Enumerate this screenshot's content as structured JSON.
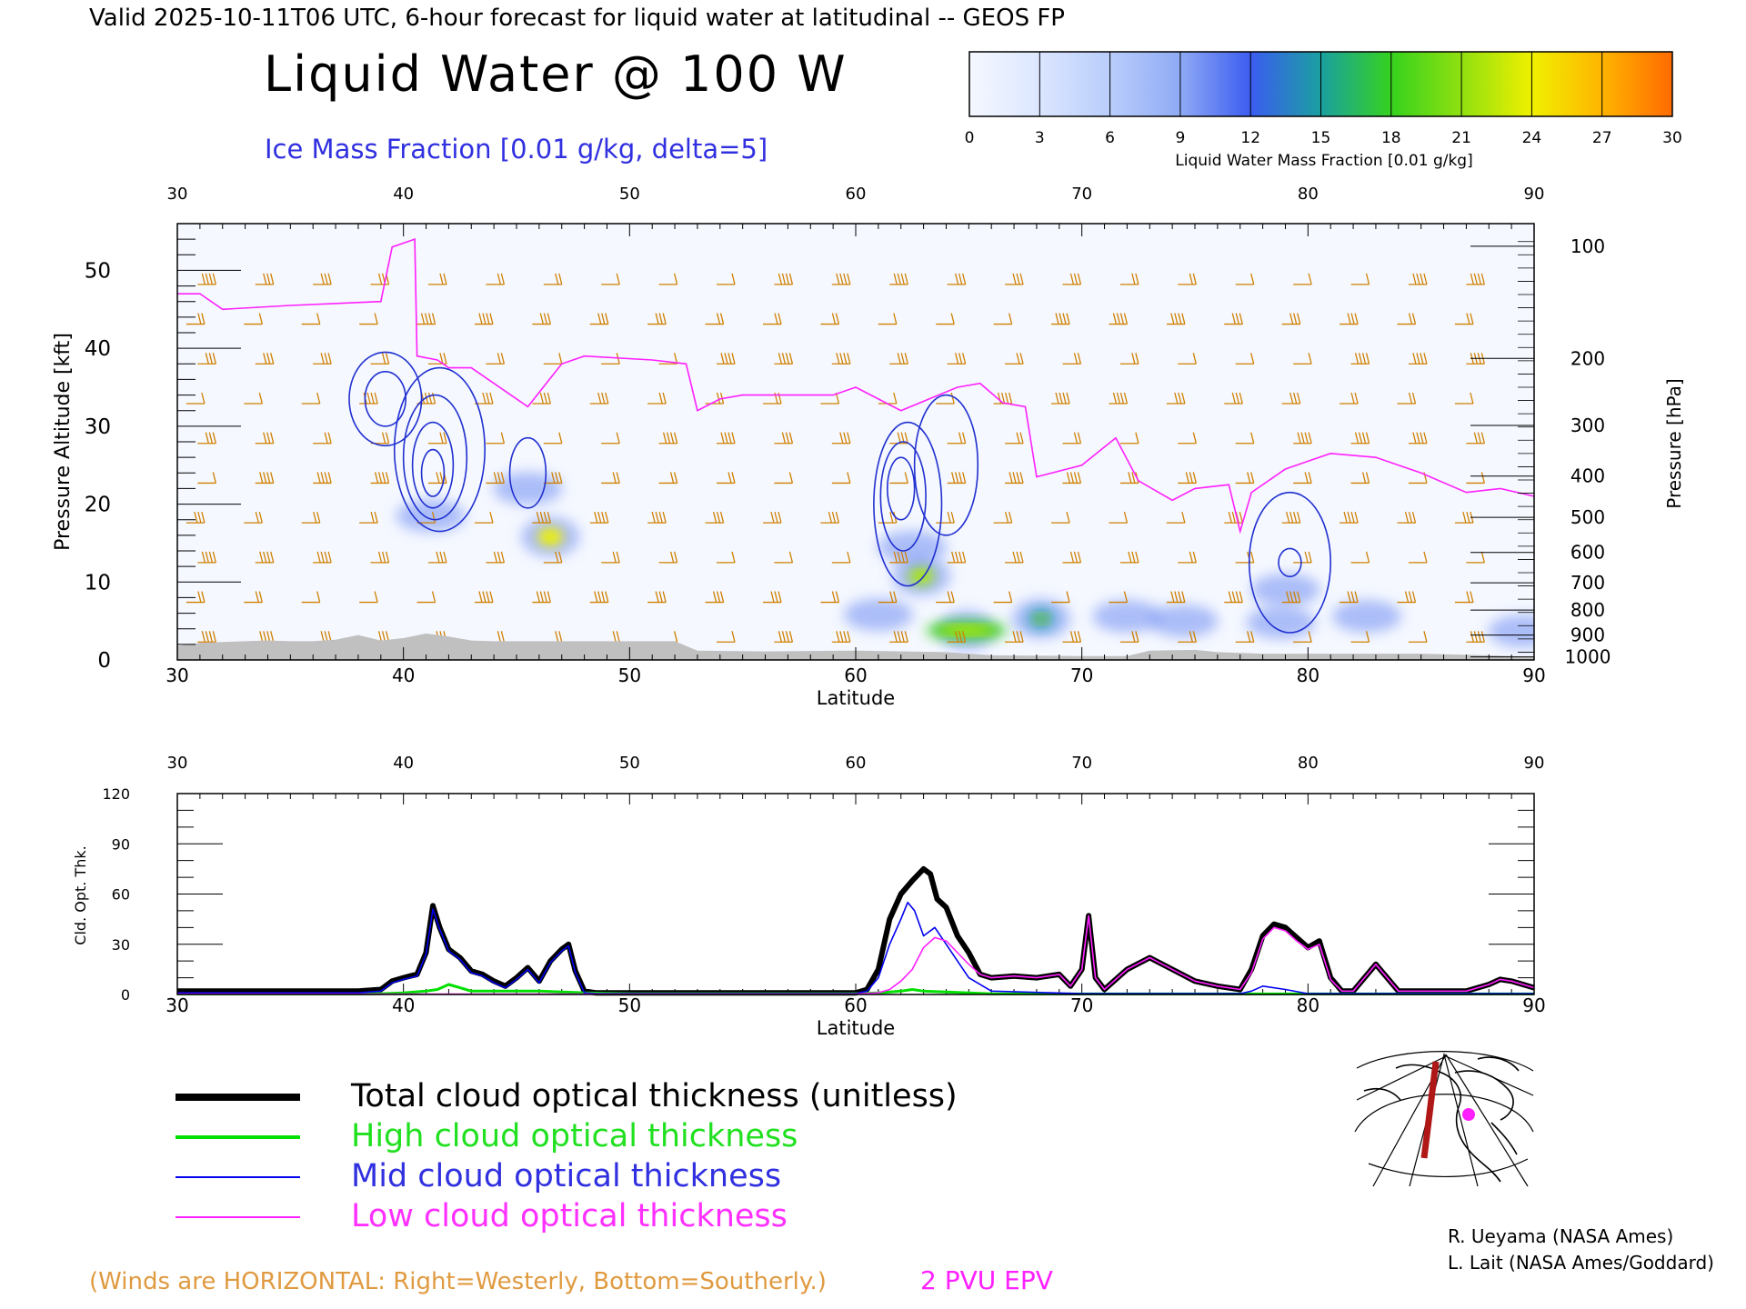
{
  "header": {
    "valid_line": "Valid 2025-10-11T06 UTC, 6-hour forecast for liquid water at latitudinal -- GEOS FP",
    "main_title": "Liquid Water @ 100 W",
    "contour_label": "Ice Mass Fraction [0.01 g/kg, delta=5]"
  },
  "colorbar": {
    "label": "Liquid Water Mass Fraction [0.01 g/kg]",
    "ticks": [
      "0",
      "3",
      "6",
      "9",
      "12",
      "15",
      "18",
      "21",
      "24",
      "27",
      "30"
    ],
    "colors": [
      "#f5f8ff",
      "#dbe6ff",
      "#b9cdfb",
      "#8faaf5",
      "#3b5cf0",
      "#1aa0a0",
      "#36d21e",
      "#90e010",
      "#f0f000",
      "#ffb400",
      "#ff6a00",
      "#ff2000"
    ]
  },
  "colors": {
    "terrain": "#c0c0c0",
    "contour": "#2030d0",
    "tropopause": "#ff20ff",
    "wind_barb": "#d08000"
  },
  "chart_data": [
    {
      "type": "heatmap",
      "xlabel": "Latitude",
      "ylabel_left": "Pressure Altitude [kft]",
      "ylabel_right": "Pressure [hPa]",
      "xlim": [
        30,
        90
      ],
      "ylim": [
        0,
        56
      ],
      "x_ticks": [
        "30",
        "40",
        "50",
        "60",
        "70",
        "80",
        "90"
      ],
      "y_ticks": [
        "0",
        "10",
        "20",
        "30",
        "40",
        "50"
      ],
      "pressure_ticks": [
        {
          "label": "100",
          "kft": 53.1
        },
        {
          "label": "200",
          "kft": 38.7
        },
        {
          "label": "300",
          "kft": 30.1
        },
        {
          "label": "400",
          "kft": 23.6
        },
        {
          "label": "500",
          "kft": 18.3
        },
        {
          "label": "600",
          "kft": 13.8
        },
        {
          "label": "700",
          "kft": 9.9
        },
        {
          "label": "800",
          "kft": 6.4
        },
        {
          "label": "900",
          "kft": 3.2
        },
        {
          "label": "1000",
          "kft": 0.4
        }
      ],
      "liquid_water_blobs": [
        {
          "lat": 46.5,
          "kft": 15.8,
          "value": 20
        },
        {
          "lat": 62.9,
          "kft": 10.8,
          "value": 18
        },
        {
          "lat": 64.9,
          "kft": 3.8,
          "value": 16
        },
        {
          "lat": 68.2,
          "kft": 5.3,
          "value": 12
        },
        {
          "lat": 62.5,
          "kft": 14.5,
          "value": 8
        },
        {
          "lat": 61.0,
          "kft": 5.8,
          "value": 5
        },
        {
          "lat": 72.0,
          "kft": 5.6,
          "value": 5
        },
        {
          "lat": 74.5,
          "kft": 5.0,
          "value": 6
        },
        {
          "lat": 78.8,
          "kft": 4.8,
          "value": 9
        },
        {
          "lat": 82.6,
          "kft": 5.6,
          "value": 7
        },
        {
          "lat": 89.5,
          "kft": 3.7,
          "value": 9
        },
        {
          "lat": 41.2,
          "kft": 18.5,
          "value": 6
        },
        {
          "lat": 45.5,
          "kft": 22.0,
          "value": 4
        },
        {
          "lat": 79.0,
          "kft": 9.0,
          "value": 4
        }
      ],
      "ice_contours": [
        {
          "lat": 39.2,
          "kft": 33.5,
          "rx": 0.9,
          "ry": 3.5
        },
        {
          "lat": 39.2,
          "kft": 33.5,
          "rx": 1.6,
          "ry": 6.0
        },
        {
          "lat": 41.3,
          "kft": 24.0,
          "rx": 0.5,
          "ry": 3.0
        },
        {
          "lat": 41.3,
          "kft": 25.0,
          "rx": 0.9,
          "ry": 5.5
        },
        {
          "lat": 41.4,
          "kft": 26.0,
          "rx": 1.4,
          "ry": 8.0
        },
        {
          "lat": 41.6,
          "kft": 27.0,
          "rx": 2.0,
          "ry": 10.5
        },
        {
          "lat": 45.5,
          "kft": 24.0,
          "rx": 0.8,
          "ry": 4.5
        },
        {
          "lat": 62.0,
          "kft": 22.0,
          "rx": 0.6,
          "ry": 4.0
        },
        {
          "lat": 62.1,
          "kft": 21.0,
          "rx": 1.0,
          "ry": 7.0
        },
        {
          "lat": 62.3,
          "kft": 20.0,
          "rx": 1.5,
          "ry": 10.5
        },
        {
          "lat": 64.0,
          "kft": 25.0,
          "rx": 1.4,
          "ry": 9.0
        },
        {
          "lat": 79.2,
          "kft": 12.5,
          "rx": 0.5,
          "ry": 1.8
        },
        {
          "lat": 79.2,
          "kft": 12.5,
          "rx": 1.8,
          "ry": 9.0
        }
      ],
      "tropopause_2pvu": {
        "lat": [
          30,
          31,
          32,
          35,
          39,
          39.5,
          40.5,
          40.6,
          41.5,
          42,
          43,
          45.5,
          47,
          48,
          51,
          52.5,
          53,
          54,
          55,
          57,
          59,
          60,
          62,
          64.5,
          65.5,
          66.5,
          67.5,
          68,
          70,
          71.5,
          72.5,
          74,
          75,
          76.5,
          77,
          77.5,
          79,
          80,
          81,
          83,
          85,
          87,
          88.5,
          90
        ],
        "kft": [
          47,
          47,
          45,
          45.5,
          46,
          53,
          54,
          39,
          38.5,
          37.5,
          37.5,
          32.5,
          38,
          39,
          38.5,
          38,
          32,
          33.5,
          34,
          34,
          34,
          35,
          32,
          35,
          35.5,
          33,
          32.5,
          23.5,
          25,
          28.5,
          23,
          20.5,
          22,
          22.5,
          16.5,
          21.5,
          24.5,
          25.5,
          26.5,
          26,
          24,
          21.5,
          22,
          21
        ]
      },
      "terrain": {
        "lat": [
          30,
          31,
          32,
          33,
          34,
          35,
          36,
          37,
          38,
          39,
          40,
          41,
          42,
          43,
          44,
          45,
          46,
          47,
          48,
          49,
          50,
          51,
          52,
          53,
          56,
          60,
          64,
          66,
          70,
          72,
          73,
          75,
          76,
          78,
          85,
          88,
          90
        ],
        "kft": [
          1.8,
          2.2,
          2.3,
          2.4,
          2.5,
          2.4,
          2.4,
          2.6,
          3.2,
          2.5,
          2.8,
          3.4,
          3.0,
          2.5,
          2.4,
          2.4,
          2.4,
          2.4,
          2.4,
          2.4,
          2.4,
          2.4,
          2.4,
          1.2,
          1.1,
          1.2,
          1.0,
          0.6,
          0.5,
          0.5,
          1.2,
          1.3,
          1.0,
          0.8,
          0.8,
          0.6,
          0.4
        ]
      }
    },
    {
      "type": "line",
      "xlabel": "Latitude",
      "ylabel": "Cld. Opt. Thk.",
      "xlim": [
        30,
        90
      ],
      "ylim": [
        0,
        120
      ],
      "x_ticks": [
        "30",
        "40",
        "50",
        "60",
        "70",
        "80",
        "90"
      ],
      "y_ticks": [
        "0",
        "30",
        "60",
        "90",
        "120"
      ],
      "series": [
        {
          "name": "Total cloud optical thickness (unitless)",
          "color": "#000000",
          "x": [
            30,
            38,
            39,
            39.5,
            40,
            40.3,
            40.6,
            41,
            41.3,
            41.6,
            42,
            42.5,
            43,
            43.5,
            44,
            44.5,
            45,
            45.5,
            46,
            46.5,
            47,
            47.3,
            47.6,
            48,
            48.5,
            50,
            60,
            60.5,
            61,
            61.5,
            62,
            62.5,
            63,
            63.3,
            63.6,
            64,
            64.5,
            65,
            65.5,
            66,
            67,
            68,
            69,
            69.5,
            70,
            70.3,
            70.6,
            71,
            72,
            73,
            74,
            75,
            76,
            77,
            77.5,
            78,
            78.5,
            79,
            79.5,
            80,
            80.5,
            81,
            81.5,
            82,
            82.5,
            83,
            84,
            87,
            88,
            88.5,
            89,
            90
          ],
          "values": [
            2,
            2,
            3,
            8,
            10,
            11,
            12,
            25,
            53,
            40,
            27,
            22,
            14,
            12,
            8,
            5,
            10,
            16,
            8,
            20,
            27,
            30,
            14,
            2,
            1,
            1,
            1,
            3,
            15,
            45,
            60,
            68,
            75,
            72,
            57,
            52,
            35,
            25,
            12,
            10,
            11,
            10,
            12,
            5,
            15,
            47,
            10,
            3,
            15,
            22,
            15,
            8,
            5,
            3,
            15,
            35,
            42,
            40,
            34,
            28,
            32,
            10,
            2,
            2,
            10,
            18,
            2,
            2,
            6,
            9,
            8,
            4
          ]
        },
        {
          "name": "High cloud optical thickness",
          "color": "#00e000",
          "x": [
            30,
            38,
            39,
            40,
            41,
            41.5,
            42,
            42.5,
            43,
            44,
            45,
            46,
            47,
            48,
            50,
            60,
            61,
            62,
            62.5,
            63,
            64,
            65,
            66,
            70,
            75,
            80,
            85,
            90
          ],
          "values": [
            0.3,
            0.3,
            0.5,
            1,
            2,
            3,
            6,
            4,
            2,
            2,
            2,
            2,
            1.5,
            1,
            0.5,
            0.5,
            1,
            2,
            3,
            2,
            1.5,
            1,
            0.4,
            0.3,
            0.3,
            0.3,
            0.3,
            0.3
          ]
        },
        {
          "name": "Mid cloud optical thickness",
          "color": "#0000f0",
          "x": [
            30,
            38,
            39,
            39.5,
            40,
            40.3,
            40.6,
            41,
            41.3,
            41.6,
            42,
            42.5,
            43,
            43.5,
            44,
            44.5,
            45,
            45.5,
            46,
            46.5,
            47,
            47.3,
            47.6,
            48,
            48.5,
            50,
            60,
            60.5,
            61,
            61.5,
            62,
            62.3,
            62.6,
            63,
            63.5,
            64,
            64.5,
            65,
            66,
            70,
            77,
            77.5,
            78,
            79,
            80,
            90
          ],
          "values": [
            1,
            1,
            2,
            7,
            9,
            10,
            11,
            24,
            51,
            39,
            26,
            21,
            13,
            11,
            7,
            4,
            9,
            15,
            7,
            19,
            26,
            29,
            13,
            1,
            0.5,
            0.5,
            0.5,
            2,
            10,
            30,
            45,
            55,
            50,
            35,
            40,
            30,
            20,
            10,
            2,
            0.5,
            0.5,
            2,
            5,
            3,
            0.5,
            0.5
          ]
        },
        {
          "name": "Low cloud optical thickness",
          "color": "#ff20ff",
          "x": [
            30,
            60,
            61,
            61.5,
            62,
            62.5,
            63,
            63.5,
            64,
            64.5,
            65,
            65.5,
            66,
            67,
            68,
            69,
            69.5,
            70,
            70.3,
            70.6,
            71,
            72,
            73,
            74,
            75,
            76,
            77,
            77.5,
            78,
            78.5,
            79,
            79.5,
            80,
            80.5,
            81,
            81.5,
            82,
            82.5,
            83,
            84,
            87,
            88,
            88.5,
            89,
            90
          ],
          "values": [
            0.2,
            0.2,
            1,
            3,
            8,
            15,
            28,
            34,
            32,
            25,
            18,
            12,
            10,
            11,
            10,
            12,
            5,
            15,
            47,
            10,
            3,
            15,
            22,
            15,
            8,
            5,
            3,
            13,
            33,
            40,
            38,
            32,
            27,
            30,
            9,
            2,
            2,
            10,
            18,
            2,
            2,
            6,
            9,
            8,
            4
          ]
        }
      ]
    }
  ],
  "legend": {
    "total": "Total cloud optical thickness (unitless)",
    "high": "High cloud optical thickness",
    "mid": "Mid cloud optical thickness",
    "low": "Low cloud optical thickness"
  },
  "map_inset": {
    "icon": "north-polar-map-icon",
    "marker_color": "#ff20ff",
    "track_color": "#b01818"
  },
  "footer": {
    "winds_note": "(Winds are HORIZONTAL: Right=Westerly, Bottom=Southerly.)",
    "pvu_label": "2 PVU EPV",
    "credit1": "R. Ueyama (NASA Ames)",
    "credit2": "L. Lait (NASA Ames/Goddard)"
  }
}
